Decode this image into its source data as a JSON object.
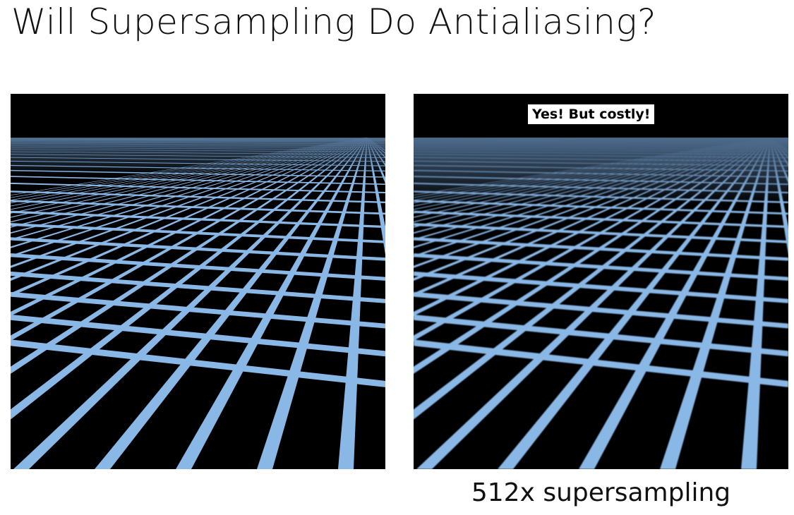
{
  "slide": {
    "title": "Will Supersampling Do Antialiasing?"
  },
  "left_image": {
    "description": "aliased perspective grid"
  },
  "right_image": {
    "badge": "Yes! But costly!",
    "caption": "512x supersampling"
  },
  "colors": {
    "grid_line": "#8ab8e6",
    "background": "#000000",
    "horizon_haze": "#4a6788"
  }
}
